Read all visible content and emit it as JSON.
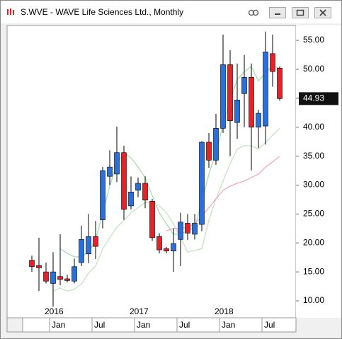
{
  "window_title": "S.WVE - WAVE Life Sciences Ltd., Monthly",
  "chart_data": {
    "type": "candlestick",
    "categories": [
      null,
      null,
      null,
      "Jan",
      null,
      null,
      null,
      null,
      null,
      "Jul",
      null,
      null,
      null,
      null,
      null,
      "Jan",
      null,
      null,
      null,
      null,
      null,
      "Jul",
      null,
      null,
      null,
      null,
      null,
      "Jan",
      null,
      null,
      null,
      null,
      null,
      "Jul",
      null,
      null
    ],
    "years": [
      null,
      null,
      null,
      "2016",
      null,
      null,
      null,
      null,
      null,
      null,
      null,
      null,
      null,
      null,
      null,
      "2017",
      null,
      null,
      null,
      null,
      null,
      null,
      null,
      null,
      null,
      null,
      null,
      "2018",
      null,
      null,
      null,
      null,
      null,
      null,
      null,
      null
    ],
    "open": [
      17.0,
      16.1,
      15.0,
      13.0,
      14.2,
      13.8,
      13.4,
      16.6,
      18.1,
      21.1,
      24.0,
      31.5,
      31.9,
      35.6,
      26.4,
      29.1,
      30.3,
      27.2,
      21.1,
      19.0,
      18.6,
      20.6,
      23.4,
      21.5,
      23.2,
      37.4,
      34.3,
      39.8,
      50.8,
      40.8,
      45.8,
      48.6,
      40.0,
      40.2,
      52.7,
      50.2
    ],
    "high": [
      17.8,
      20.9,
      16.6,
      18.4,
      21.5,
      14.5,
      17.3,
      23.0,
      25.0,
      23.8,
      33.1,
      36.0,
      40.1,
      36.8,
      31.5,
      31.3,
      31.5,
      27.6,
      21.7,
      19.3,
      22.5,
      25.2,
      25.0,
      25.0,
      37.6,
      39.0,
      42.3,
      56.0,
      53.3,
      51.0,
      52.5,
      51.0,
      43.0,
      56.5,
      56.0,
      50.5
    ],
    "low": [
      15.0,
      11.7,
      13.0,
      9.0,
      12.7,
      13.2,
      13.0,
      16.0,
      16.5,
      17.2,
      22.5,
      30.0,
      30.5,
      24.0,
      25.8,
      27.9,
      26.0,
      20.4,
      18.2,
      18.2,
      15.0,
      16.0,
      20.5,
      20.6,
      22.0,
      33.0,
      33.5,
      39.0,
      35.0,
      38.0,
      40.0,
      32.5,
      36.4,
      37.0,
      47.0,
      44.6
    ],
    "close": [
      15.9,
      15.7,
      13.4,
      15.0,
      13.7,
      13.5,
      15.9,
      20.6,
      21.1,
      19.4,
      32.5,
      33.1,
      35.6,
      25.8,
      28.8,
      30.3,
      27.4,
      20.9,
      18.8,
      18.6,
      19.9,
      23.6,
      21.7,
      23.4,
      37.4,
      34.3,
      39.8,
      50.8,
      41.1,
      44.7,
      48.6,
      40.0,
      42.4,
      53.0,
      49.6,
      44.93
    ],
    "up_color": "#2b6fd8",
    "down_color": "#e0242a",
    "lines": [
      {
        "color": "#a8dcae",
        "values": [
          null,
          null,
          null,
          null,
          19.0,
          18.2,
          17.6,
          17.6,
          18.4,
          20.5,
          25.2,
          29.8,
          33.7,
          35.6,
          34.7,
          33.1,
          31.3,
          28.2,
          25.2,
          23.3,
          21.5,
          21.5,
          22.1,
          22.7,
          27.0,
          31.9,
          35.6,
          40.4,
          44.7,
          48.2,
          49.6,
          50.5,
          48.0,
          49.4,
          50.6,
          50.2
        ]
      },
      {
        "color": "#c4e3c4",
        "values": [
          null,
          null,
          null,
          11.7,
          12.2,
          11.7,
          12.0,
          12.9,
          14.8,
          16.0,
          19.0,
          20.9,
          22.7,
          23.9,
          25.2,
          26.1,
          27.0,
          27.0,
          26.4,
          25.2,
          23.3,
          20.9,
          18.4,
          18.7,
          19.0,
          23.9,
          27.6,
          30.7,
          33.7,
          36.2,
          36.8,
          36.8,
          36.2,
          37.4,
          38.6,
          39.8
        ]
      },
      {
        "color": "#f0a8c4",
        "values": [
          null,
          null,
          null,
          null,
          null,
          null,
          null,
          null,
          null,
          null,
          null,
          null,
          null,
          null,
          null,
          null,
          null,
          null,
          null,
          22.1,
          22.5,
          22.5,
          22.7,
          23.3,
          24.6,
          26.1,
          27.6,
          29.1,
          29.8,
          30.3,
          30.7,
          31.3,
          31.9,
          33.1,
          34.0,
          35.0
        ]
      }
    ],
    "ylim": [
      7.07,
      57.57
    ],
    "yticks": [
      {
        "value": 10,
        "label": "10.00"
      },
      {
        "value": 15,
        "label": "15.00"
      },
      {
        "value": 20,
        "label": "20.00"
      },
      {
        "value": 25,
        "label": "25.00"
      },
      {
        "value": 30,
        "label": "30.00"
      },
      {
        "value": 35,
        "label": "35.00"
      },
      {
        "value": 40,
        "label": "40.00"
      },
      {
        "value": 45,
        "label": "45.00"
      },
      {
        "value": 50,
        "label": "50.00"
      },
      {
        "value": 55,
        "label": "55.00"
      }
    ]
  }
}
